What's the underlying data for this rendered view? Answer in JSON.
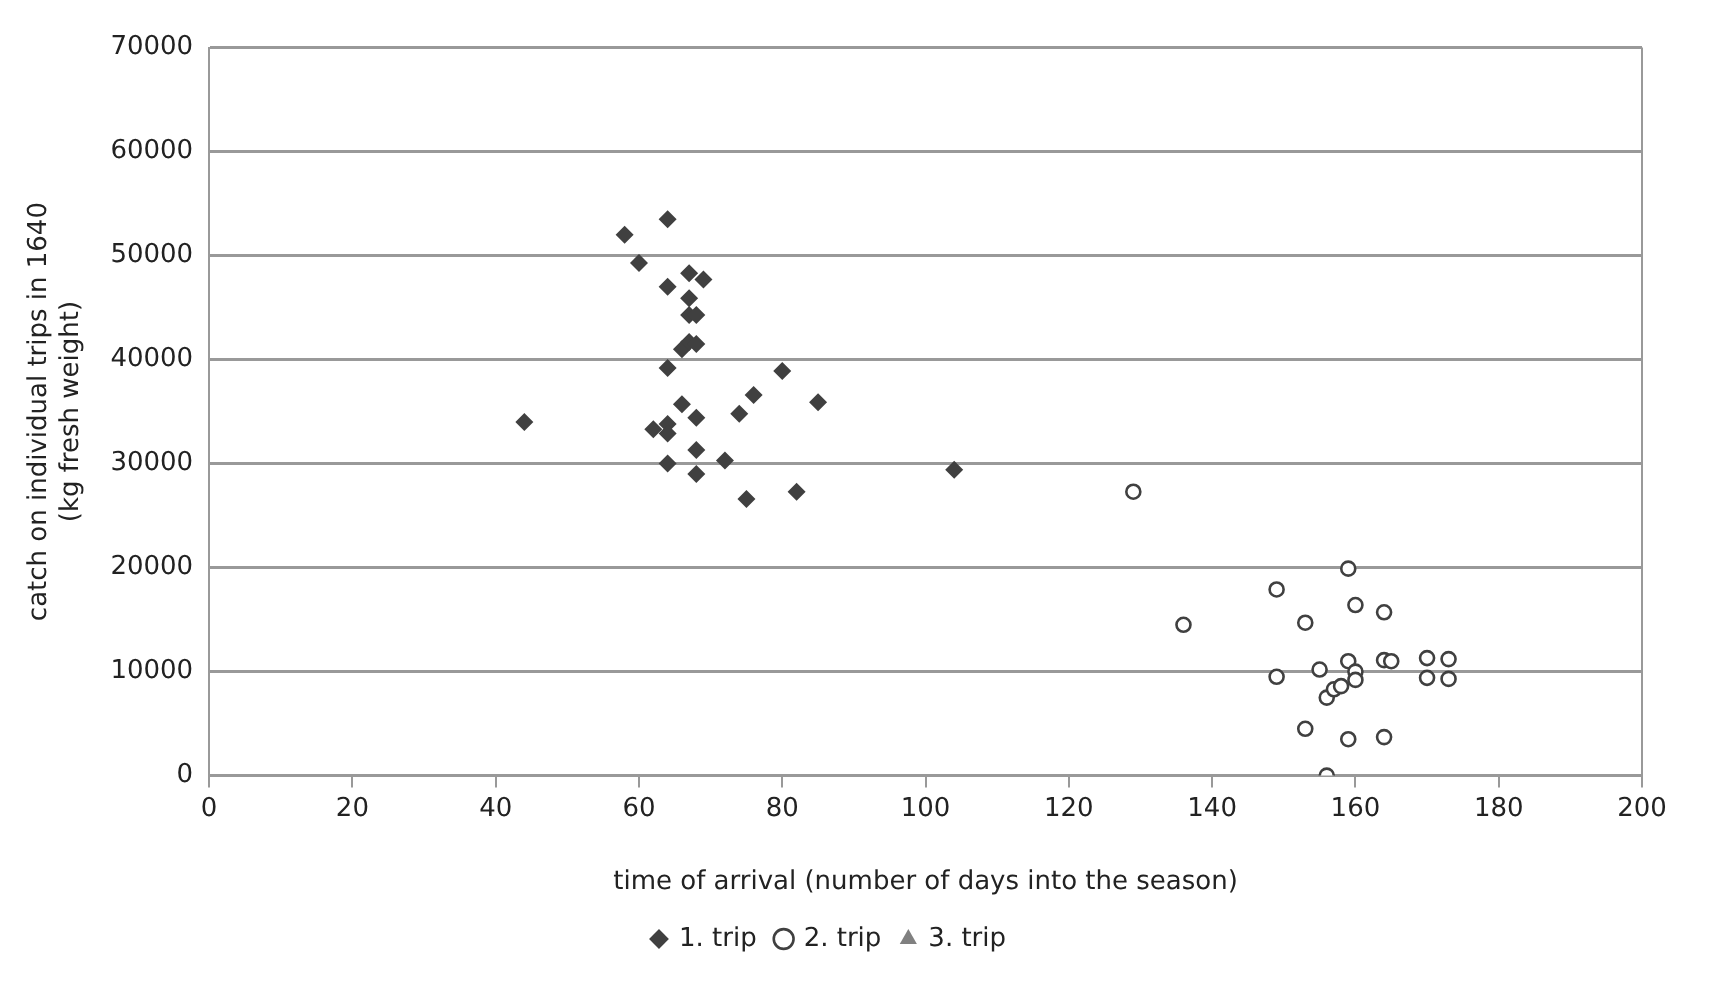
{
  "chart_data": {
    "type": "scatter",
    "xlabel": "time of arrival (number of days into the season)",
    "ylabel": "catch on individual trips in 1640\n(kg fresh weight)",
    "xlim": [
      0,
      200
    ],
    "xticks": [
      0,
      20,
      40,
      60,
      80,
      100,
      120,
      140,
      160,
      180,
      200
    ],
    "ylim": [
      0,
      70000
    ],
    "yticks": [
      0,
      10000,
      20000,
      30000,
      40000,
      50000,
      60000,
      70000
    ],
    "grid": "y",
    "legend": "bottom",
    "series": [
      {
        "name": "1. trip",
        "color": "#404040",
        "marker": "diamond",
        "x": [
          44,
          58,
          60,
          64,
          64,
          67,
          69,
          67,
          67,
          68,
          66,
          67,
          68,
          64,
          80,
          76,
          85,
          66,
          68,
          74,
          62,
          64,
          64,
          68,
          64,
          72,
          68,
          75,
          82,
          104
        ],
        "values": [
          34000,
          52000,
          49300,
          53500,
          47000,
          48300,
          47700,
          45900,
          44300,
          44300,
          41000,
          41700,
          41500,
          39200,
          38900,
          36600,
          35900,
          35700,
          34400,
          34800,
          33300,
          33800,
          32900,
          31300,
          30000,
          30300,
          29000,
          26600,
          27300,
          29400
        ]
      },
      {
        "name": "2. trip",
        "color": "#404040",
        "marker": "circle",
        "x": [
          129,
          136,
          149,
          149,
          153,
          153,
          155,
          156,
          156,
          157,
          158,
          159,
          159,
          159,
          160,
          160,
          160,
          164,
          164,
          165,
          164,
          170,
          170,
          173,
          173
        ],
        "values": [
          27300,
          14500,
          17900,
          9500,
          14700,
          4500,
          10200,
          0,
          7500,
          8300,
          8600,
          11000,
          19900,
          3500,
          16400,
          10000,
          9200,
          15700,
          11100,
          11000,
          3700,
          11300,
          9400,
          11200,
          9300
        ]
      },
      {
        "name": "3. trip",
        "color": "#808080",
        "marker": "triangle"
      }
    ]
  }
}
